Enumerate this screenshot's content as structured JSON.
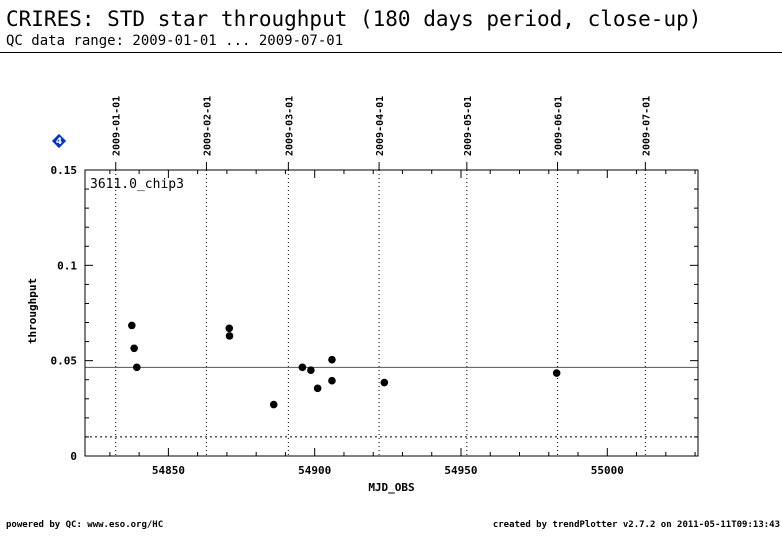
{
  "header": {
    "title": "CRIRES: STD star throughput (180 days period, close-up)",
    "subtitle": "QC data range: 2009-01-01 ... 2009-07-01"
  },
  "footer": {
    "left": "powered by QC: www.eso.org/HC",
    "right": "created by trendPlotter v2.7.2 on 2011-05-11T09:13:43"
  },
  "chart_data": {
    "type": "scatter",
    "panel_label": "3611.0_chip3",
    "marker_badge": "4",
    "xlabel": "MJD_OBS",
    "ylabel": "throughput",
    "xlim": [
      54821.5,
      55031
    ],
    "ylim": [
      0,
      0.15
    ],
    "x_ticks": [
      54850,
      54900,
      54950,
      55000
    ],
    "y_ticks": [
      0,
      0.05,
      0.1,
      0.15
    ],
    "y_tick_labels": [
      "0",
      "0.05",
      "0.1",
      "0.15"
    ],
    "date_lines": [
      {
        "mjd": 54832,
        "label": "2009-01-01"
      },
      {
        "mjd": 54863,
        "label": "2009-02-01"
      },
      {
        "mjd": 54891,
        "label": "2009-03-01"
      },
      {
        "mjd": 54922,
        "label": "2009-04-01"
      },
      {
        "mjd": 54952,
        "label": "2009-05-01"
      },
      {
        "mjd": 54983,
        "label": "2009-06-01"
      },
      {
        "mjd": 55013,
        "label": "2009-07-01"
      }
    ],
    "reference_lines": [
      {
        "y": 0.0465,
        "style": "solid"
      },
      {
        "y": 0.01,
        "style": "dotted"
      }
    ],
    "points": [
      {
        "x": 54837.5,
        "y": 0.0685
      },
      {
        "x": 54838.3,
        "y": 0.0565
      },
      {
        "x": 54839.2,
        "y": 0.0465
      },
      {
        "x": 54870.8,
        "y": 0.067
      },
      {
        "x": 54870.9,
        "y": 0.063
      },
      {
        "x": 54886.0,
        "y": 0.027
      },
      {
        "x": 54895.8,
        "y": 0.0465
      },
      {
        "x": 54898.7,
        "y": 0.045
      },
      {
        "x": 54901.0,
        "y": 0.0355
      },
      {
        "x": 54905.9,
        "y": 0.0505
      },
      {
        "x": 54905.9,
        "y": 0.0395
      },
      {
        "x": 54923.8,
        "y": 0.0385
      },
      {
        "x": 54982.7,
        "y": 0.0435
      }
    ],
    "colors": {
      "badge": "#0033cc",
      "marker": "#000000"
    }
  }
}
